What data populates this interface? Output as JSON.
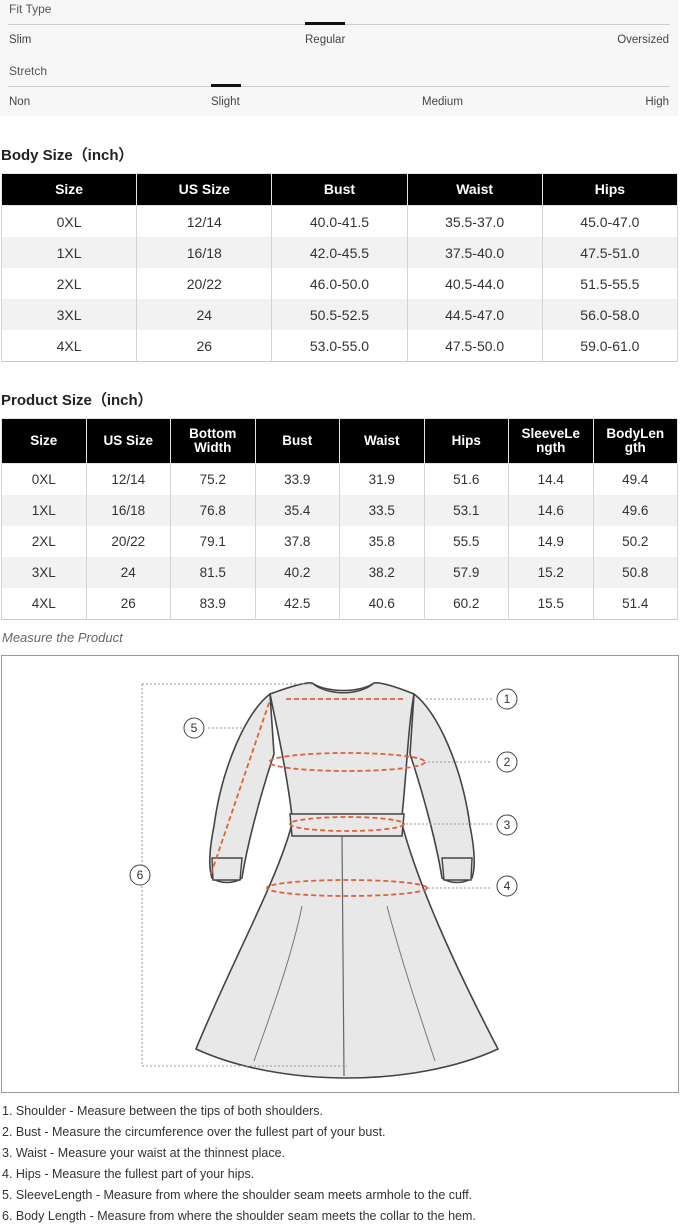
{
  "fit_scale": {
    "title": "Fit Type",
    "labels": [
      "Slim",
      "Regular",
      "Oversized"
    ],
    "selected": "Regular"
  },
  "stretch_scale": {
    "title": "Stretch",
    "labels": [
      "Non",
      "Slight",
      "Medium",
      "High"
    ],
    "selected": "Slight"
  },
  "body_size": {
    "title": "Body Size（inch）",
    "headers": [
      "Size",
      "US Size",
      "Bust",
      "Waist",
      "Hips"
    ],
    "rows": [
      [
        "0XL",
        "12/14",
        "40.0-41.5",
        "35.5-37.0",
        "45.0-47.0"
      ],
      [
        "1XL",
        "16/18",
        "42.0-45.5",
        "37.5-40.0",
        "47.5-51.0"
      ],
      [
        "2XL",
        "20/22",
        "46.0-50.0",
        "40.5-44.0",
        "51.5-55.5"
      ],
      [
        "3XL",
        "24",
        "50.5-52.5",
        "44.5-47.0",
        "56.0-58.0"
      ],
      [
        "4XL",
        "26",
        "53.0-55.0",
        "47.5-50.0",
        "59.0-61.0"
      ]
    ]
  },
  "product_size": {
    "title": "Product Size（inch）",
    "headers": [
      "Size",
      "US Size",
      "Bottom\nWidth",
      "Bust",
      "Waist",
      "Hips",
      "SleeveLe\nngth",
      "BodyLen\ngth"
    ],
    "rows": [
      [
        "0XL",
        "12/14",
        "75.2",
        "33.9",
        "31.9",
        "51.6",
        "14.4",
        "49.4"
      ],
      [
        "1XL",
        "16/18",
        "76.8",
        "35.4",
        "33.5",
        "53.1",
        "14.6",
        "49.6"
      ],
      [
        "2XL",
        "20/22",
        "79.1",
        "37.8",
        "35.8",
        "55.5",
        "14.9",
        "50.2"
      ],
      [
        "3XL",
        "24",
        "81.5",
        "40.2",
        "38.2",
        "57.9",
        "15.2",
        "50.8"
      ],
      [
        "4XL",
        "26",
        "83.9",
        "42.5",
        "40.6",
        "60.2",
        "15.5",
        "51.4"
      ]
    ]
  },
  "measure_caption": "Measure the Product",
  "diagram": {
    "callouts": [
      "1",
      "2",
      "3",
      "4",
      "5",
      "6"
    ],
    "line_color": "#e0603a"
  },
  "notes": [
    "1. Shoulder - Measure between the tips of both shoulders.",
    "2. Bust - Measure the circumference over the fullest part of your bust.",
    "3. Waist - Measure your waist at the thinnest place.",
    "4. Hips - Measure the fullest part of your hips.",
    "5. SleeveLength - Measure from where the shoulder seam meets armhole to the cuff.",
    "6. Body Length - Measure from where the shoulder seam meets the collar to the hem."
  ]
}
